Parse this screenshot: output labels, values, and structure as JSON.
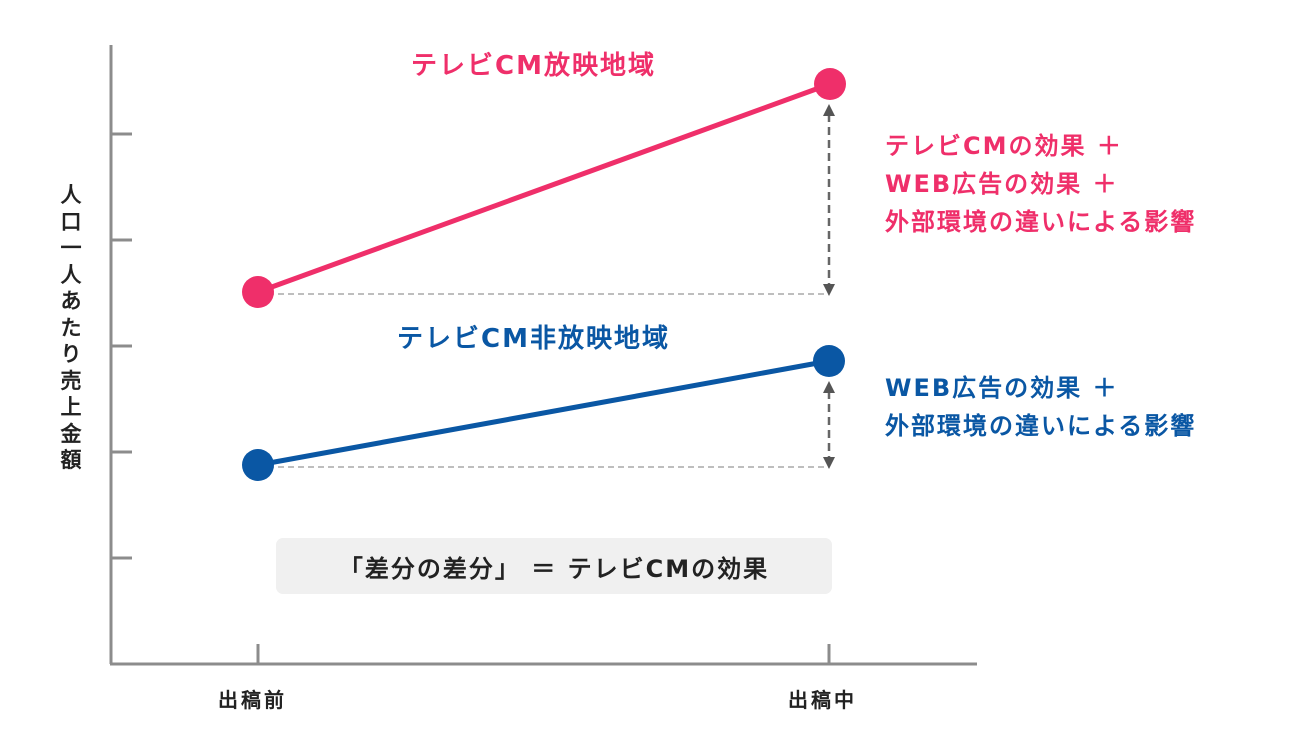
{
  "colors": {
    "tv": "#ef2f6a",
    "non_tv": "#0a57a4",
    "axis": "#8c8c8c",
    "text": "#222222",
    "note_bg": "#f0f0f0"
  },
  "y_axis_label": [
    "人",
    "口",
    "一",
    "人",
    "あ",
    "た",
    "り",
    "売",
    "上",
    "金",
    "額"
  ],
  "x_axis_labels": {
    "before": "出稿前",
    "during": "出稿中"
  },
  "series": {
    "tv": {
      "name": "テレビCM放映地域",
      "desc": [
        "テレビCMの効果 ＋",
        "WEB広告の効果 ＋",
        "外部環境の違いによる影響"
      ]
    },
    "non_tv": {
      "name": "テレビCM非放映地域",
      "desc": [
        "WEB広告の効果 ＋",
        "外部環境の違いによる影響"
      ]
    }
  },
  "note": "「差分の差分」 ＝ テレビCMの効果"
}
